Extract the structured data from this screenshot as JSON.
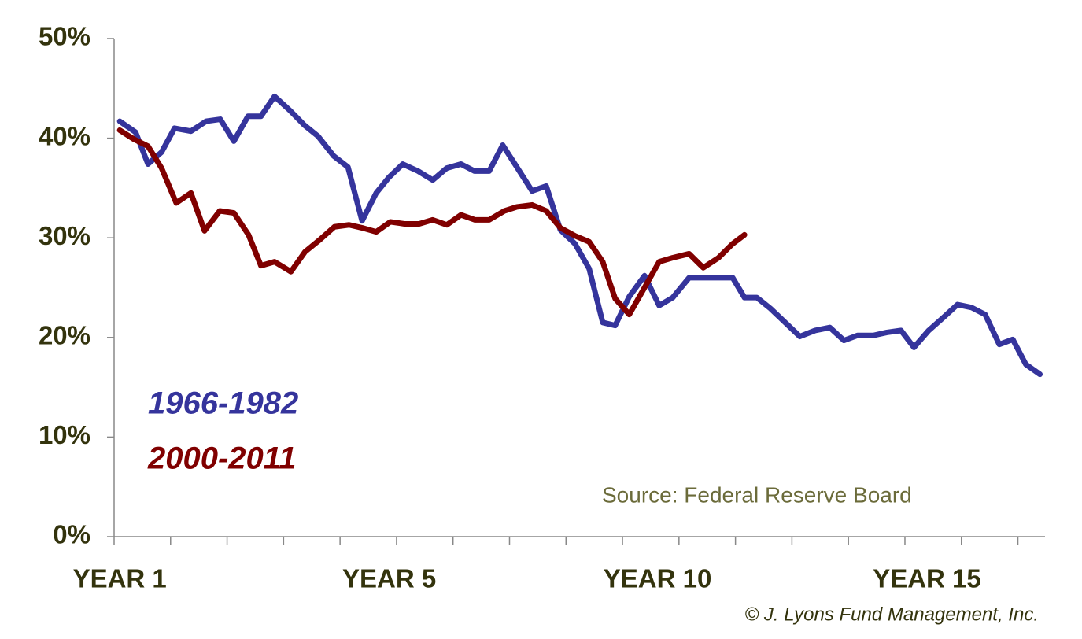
{
  "chart_data": {
    "type": "line",
    "source": "Source: Federal Reserve Board",
    "credit": "© J. Lyons Fund Management, Inc.",
    "xlim": [
      0,
      16.48
    ],
    "ylim": [
      0,
      50
    ],
    "yticks": [
      {
        "value": 0,
        "label": "0%"
      },
      {
        "value": 10,
        "label": "10%"
      },
      {
        "value": 20,
        "label": "20%"
      },
      {
        "value": 30,
        "label": "30%"
      },
      {
        "value": 40,
        "label": "40%"
      },
      {
        "value": 50,
        "label": "50%"
      }
    ],
    "xticks": [
      {
        "value": 0.1,
        "label": "YEAR 1"
      },
      {
        "value": 4.87,
        "label": "YEAR 5"
      },
      {
        "value": 9.62,
        "label": "YEAR 10"
      },
      {
        "value": 14.39,
        "label": "YEAR 15"
      }
    ],
    "xminorticks": [
      0,
      1,
      2,
      3,
      4,
      5,
      6,
      7,
      8,
      9,
      10,
      11,
      12,
      13,
      14,
      15,
      16
    ],
    "series": [
      {
        "name": "1966-1982",
        "color": "#35349c",
        "x": [
          0.1,
          0.38,
          0.6,
          0.84,
          1.07,
          1.36,
          1.63,
          1.88,
          2.12,
          2.37,
          2.6,
          2.84,
          3.11,
          3.37,
          3.61,
          3.89,
          4.14,
          4.39,
          4.64,
          4.87,
          5.11,
          5.38,
          5.64,
          5.89,
          6.14,
          6.38,
          6.64,
          6.88,
          7.13,
          7.4,
          7.65,
          7.9,
          8.16,
          8.41,
          8.65,
          8.87,
          9.12,
          9.39,
          9.65,
          9.89,
          10.18,
          10.43,
          10.7,
          10.95,
          11.16,
          11.38,
          11.62,
          11.88,
          12.14,
          12.41,
          12.67,
          12.92,
          13.16,
          13.44,
          13.68,
          13.93,
          14.16,
          14.42,
          14.68,
          14.93,
          15.18,
          15.42,
          15.67,
          15.91,
          16.14,
          16.39
        ],
        "values": [
          41.7,
          40.6,
          37.4,
          38.6,
          41.0,
          40.7,
          41.7,
          41.9,
          39.7,
          42.2,
          42.2,
          44.2,
          42.8,
          41.3,
          40.2,
          38.2,
          37.1,
          31.7,
          34.5,
          36.1,
          37.4,
          36.7,
          35.8,
          37.0,
          37.4,
          36.7,
          36.7,
          39.3,
          37.1,
          34.7,
          35.2,
          30.8,
          29.4,
          26.9,
          21.5,
          21.2,
          24.1,
          26.2,
          23.2,
          24.0,
          26.0,
          26.0,
          26.0,
          26.0,
          24.0,
          24.0,
          22.9,
          21.5,
          20.1,
          20.7,
          21.0,
          19.7,
          20.2,
          20.2,
          20.5,
          20.7,
          19.0,
          20.7,
          22.0,
          23.3,
          23.0,
          22.3,
          19.3,
          19.8,
          17.3,
          16.3
        ]
      },
      {
        "name": "2000-2011",
        "color": "#800000",
        "x": [
          0.1,
          0.35,
          0.6,
          0.84,
          1.1,
          1.36,
          1.6,
          1.87,
          2.12,
          2.38,
          2.6,
          2.84,
          3.13,
          3.38,
          3.64,
          3.9,
          4.16,
          4.39,
          4.64,
          4.89,
          5.14,
          5.4,
          5.64,
          5.89,
          6.14,
          6.39,
          6.64,
          6.91,
          7.13,
          7.4,
          7.65,
          7.9,
          8.16,
          8.41,
          8.65,
          8.87,
          9.12,
          9.39,
          9.65,
          9.89,
          10.18,
          10.43,
          10.7,
          10.95,
          11.16
        ],
        "values": [
          40.8,
          39.9,
          39.2,
          37.0,
          33.5,
          34.5,
          30.7,
          32.7,
          32.5,
          30.3,
          27.2,
          27.6,
          26.6,
          28.6,
          29.8,
          31.1,
          31.3,
          31.0,
          30.6,
          31.6,
          31.4,
          31.4,
          31.8,
          31.3,
          32.3,
          31.8,
          31.8,
          32.7,
          33.1,
          33.3,
          32.7,
          31.0,
          30.2,
          29.6,
          27.6,
          23.9,
          22.3,
          25.0,
          27.6,
          28.0,
          28.4,
          27.0,
          28.0,
          29.4,
          30.3
        ]
      }
    ]
  }
}
